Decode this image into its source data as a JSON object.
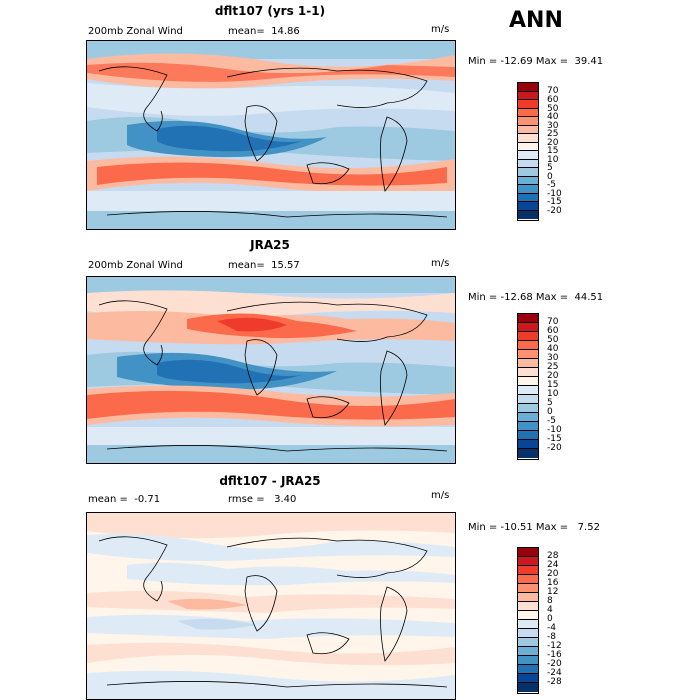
{
  "season": "ANN",
  "panels": [
    {
      "title": "dflt107 (yrs 1-1)",
      "left_label": "200mb Zonal Wind",
      "mean_label": "mean=  14.86",
      "units": "m/s",
      "minmax": "Min = -12.69 Max =  39.41",
      "colorbar_labels": [
        "70",
        "60",
        "50",
        "40",
        "30",
        "25",
        "20",
        "15",
        "10",
        "5",
        "0",
        "-5",
        "-10",
        "-15",
        "-20"
      ]
    },
    {
      "title": "JRA25",
      "left_label": "200mb Zonal Wind",
      "mean_label": "mean=  15.57",
      "units": "m/s",
      "minmax": "Min = -12.68 Max =  44.51",
      "colorbar_labels": [
        "70",
        "60",
        "50",
        "40",
        "30",
        "25",
        "20",
        "15",
        "10",
        "5",
        "0",
        "-5",
        "-10",
        "-15",
        "-20"
      ]
    },
    {
      "title": "dflt107 - JRA25",
      "left_label": "mean =  -0.71",
      "mean_label": "rmse =   3.40",
      "units": "m/s",
      "minmax": "Min = -10.51 Max =   7.52",
      "colorbar_labels": [
        "28",
        "24",
        "20",
        "16",
        "12",
        "8",
        "4",
        "0",
        "-4",
        "-8",
        "-12",
        "-16",
        "-20",
        "-24",
        "-28"
      ]
    }
  ],
  "colorbar_colors": [
    "#99000d",
    "#cb181d",
    "#ef3b2c",
    "#fb6a4a",
    "#fc9272",
    "#fcbba1",
    "#fee0d2",
    "#fff5eb",
    "#deebf7",
    "#c6dbef",
    "#9ecae1",
    "#6baed6",
    "#4292c6",
    "#2171b5",
    "#084594",
    "#08306b"
  ],
  "diff_colorbar_colors": [
    "#99000d",
    "#cb181d",
    "#ef3b2c",
    "#fb6a4a",
    "#fc9272",
    "#fcbba1",
    "#fee0d2",
    "#fff5eb",
    "#deebf7",
    "#c6dbef",
    "#9ecae1",
    "#6baed6",
    "#4292c6",
    "#2171b5",
    "#084594",
    "#08306b"
  ]
}
